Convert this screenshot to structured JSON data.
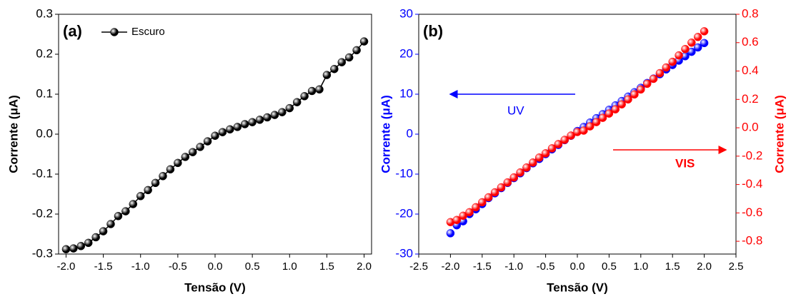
{
  "chart_data": [
    {
      "type": "line",
      "panel_label": "(a)",
      "xlabel": "Tensão (V)",
      "ylabel": "Corrente (μA)",
      "xlim": [
        -2.1,
        2.1
      ],
      "xticks": [
        {
          "value": -2,
          "label": "-2.0"
        },
        -1.5,
        {
          "value": -1,
          "label": "-1.0"
        },
        -0.5,
        {
          "value": 0,
          "label": "0.0"
        },
        0.5,
        {
          "value": 1,
          "label": "1.0"
        },
        1.5,
        {
          "value": 2,
          "label": "2.0"
        }
      ],
      "ylim": [
        -0.3,
        0.3
      ],
      "yticks": [
        -0.3,
        -0.2,
        -0.1,
        {
          "value": 0,
          "label": "0.0"
        },
        0.1,
        0.2,
        0.3
      ],
      "legend": "upper left",
      "x": [
        -2,
        -1.9,
        -1.8,
        -1.7,
        -1.6,
        -1.5,
        -1.4,
        -1.3,
        -1.2,
        -1.1,
        -1,
        -0.9,
        -0.8,
        -0.7,
        -0.6,
        -0.5,
        -0.4,
        -0.3,
        -0.2,
        -0.1,
        0,
        0.1,
        0.2,
        0.3,
        0.4,
        0.5,
        0.6,
        0.7,
        0.8,
        0.9,
        1,
        1.1,
        1.2,
        1.3,
        1.4,
        1.5,
        1.6,
        1.7,
        1.8,
        1.9,
        2
      ],
      "series": [
        {
          "name": "Escuro",
          "color": "#000000",
          "values": [
            -0.288,
            -0.286,
            -0.28,
            -0.272,
            -0.258,
            -0.243,
            -0.225,
            -0.205,
            -0.193,
            -0.175,
            -0.155,
            -0.14,
            -0.122,
            -0.105,
            -0.088,
            -0.072,
            -0.057,
            -0.045,
            -0.032,
            -0.018,
            -0.004,
            0.005,
            0.012,
            0.018,
            0.025,
            0.03,
            0.036,
            0.042,
            0.048,
            0.055,
            0.065,
            0.08,
            0.095,
            0.108,
            0.112,
            0.148,
            0.163,
            0.18,
            0.192,
            0.21,
            0.232
          ]
        }
      ]
    },
    {
      "type": "scatter",
      "panel_label": "(b)",
      "xlabel": "Tensão (V)",
      "ylabel": "Corrente (μA)",
      "y2label": "Corrente (μA)",
      "xlim": [
        -2.5,
        2.5
      ],
      "xticks": [
        -2.5,
        {
          "value": -2,
          "label": "-2.0"
        },
        -1.5,
        {
          "value": -1,
          "label": "-1.0"
        },
        -0.5,
        {
          "value": 0,
          "label": "0.0"
        },
        0.5,
        {
          "value": 1,
          "label": "1.0"
        },
        1.5,
        {
          "value": 2,
          "label": "2.0"
        },
        2.5
      ],
      "ylim": [
        -30,
        30
      ],
      "yticks": [
        -30,
        -20,
        -10,
        0,
        10,
        20,
        30
      ],
      "y2lim": [
        -0.89,
        0.8
      ],
      "y2ticks": [
        -0.8,
        -0.6,
        -0.4,
        -0.2,
        {
          "value": 0,
          "label": "0.0"
        },
        0.2,
        0.4,
        0.6,
        0.8
      ],
      "x": [
        -2,
        -1.9,
        -1.8,
        -1.7,
        -1.6,
        -1.5,
        -1.4,
        -1.3,
        -1.2,
        -1.1,
        -1,
        -0.9,
        -0.8,
        -0.7,
        -0.6,
        -0.5,
        -0.4,
        -0.3,
        -0.2,
        -0.1,
        0,
        0.1,
        0.2,
        0.3,
        0.4,
        0.5,
        0.6,
        0.7,
        0.8,
        0.9,
        1,
        1.1,
        1.2,
        1.3,
        1.4,
        1.5,
        1.6,
        1.7,
        1.8,
        1.9,
        2
      ],
      "series": [
        {
          "name": "UV",
          "color": "#0000ff",
          "values": [
            -24.8,
            -22.8,
            -21.8,
            -20,
            -18.8,
            -17.5,
            -16,
            -14.8,
            -13.5,
            -12.2,
            -11,
            -9.8,
            -8.5,
            -7.3,
            -6.2,
            -5,
            -3.8,
            -2.7,
            -1.5,
            -0.4,
            0.8,
            1.8,
            2.9,
            4,
            5,
            6.1,
            7.2,
            8.3,
            9.4,
            10.5,
            11.6,
            12.8,
            13.9,
            15,
            16.2,
            17.3,
            18.4,
            19.5,
            20.6,
            21.7,
            22.8
          ]
        },
        {
          "name": "VIS",
          "color": "#ff0000",
          "axis": "y2",
          "values": [
            -0.665,
            -0.65,
            -0.62,
            -0.595,
            -0.56,
            -0.525,
            -0.49,
            -0.455,
            -0.42,
            -0.385,
            -0.35,
            -0.315,
            -0.28,
            -0.245,
            -0.21,
            -0.18,
            -0.145,
            -0.115,
            -0.085,
            -0.055,
            -0.03,
            -0.02,
            0.01,
            0.04,
            0.07,
            0.1,
            0.13,
            0.165,
            0.2,
            0.235,
            0.27,
            0.31,
            0.345,
            0.385,
            0.425,
            0.465,
            0.51,
            0.555,
            0.6,
            0.64,
            0.68
          ]
        }
      ]
    }
  ]
}
